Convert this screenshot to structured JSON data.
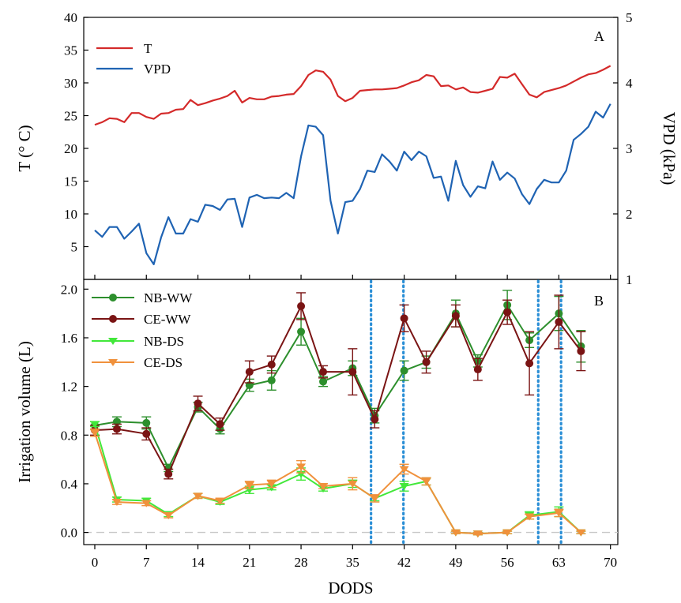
{
  "chart_data": [
    {
      "panel": "A",
      "type": "line",
      "title": "",
      "panel_label": "A",
      "xlabel": "",
      "ylabel": "T (° C)",
      "ylabel_right": "VPD (kPa)",
      "xlim": [
        -1.5,
        71
      ],
      "ylim": [
        0,
        40
      ],
      "ylim_right": [
        1,
        5
      ],
      "yticks": [
        5,
        10,
        15,
        20,
        25,
        30,
        35,
        40
      ],
      "yticks_right": [
        1,
        2,
        3,
        4,
        5
      ],
      "legend_position": "top-left",
      "colors": {
        "T": "#d42a2a",
        "VPD": "#1f63b3"
      },
      "series": [
        {
          "name": "T",
          "axis": "left",
          "x": [
            0,
            1,
            2,
            3,
            4,
            5,
            6,
            7,
            8,
            9,
            10,
            11,
            12,
            13,
            14,
            15,
            16,
            17,
            18,
            19,
            20,
            21,
            22,
            23,
            24,
            25,
            26,
            27,
            28,
            29,
            30,
            31,
            32,
            33,
            34,
            35,
            36,
            37,
            38,
            39,
            40,
            41,
            42,
            43,
            44,
            45,
            46,
            47,
            48,
            49,
            50,
            51,
            52,
            53,
            54,
            55,
            56,
            57,
            58,
            59,
            60,
            61,
            62,
            63,
            64,
            65,
            66,
            67,
            68,
            69,
            70
          ],
          "values": [
            23.6,
            24.0,
            24.6,
            24.5,
            24.0,
            25.4,
            25.4,
            24.8,
            24.5,
            25.3,
            25.4,
            25.9,
            26.0,
            27.4,
            26.6,
            26.9,
            27.3,
            27.6,
            28.0,
            28.8,
            27.0,
            27.7,
            27.5,
            27.5,
            27.9,
            28.0,
            28.2,
            28.3,
            29.5,
            31.2,
            31.9,
            31.7,
            30.5,
            28.0,
            27.2,
            27.7,
            28.8,
            28.9,
            29.0,
            29.0,
            29.1,
            29.2,
            29.6,
            30.1,
            30.4,
            31.2,
            31.0,
            29.5,
            29.6,
            29.0,
            29.3,
            28.6,
            28.5,
            28.8,
            29.1,
            30.9,
            30.8,
            31.4,
            29.8,
            28.2,
            27.8,
            28.6,
            28.9,
            29.2,
            29.6,
            30.2,
            30.8,
            31.3,
            31.5,
            32.0,
            32.6
          ]
        },
        {
          "name": "VPD",
          "axis": "right",
          "x": [
            0,
            1,
            2,
            3,
            4,
            5,
            6,
            7,
            8,
            9,
            10,
            11,
            12,
            13,
            14,
            15,
            16,
            17,
            18,
            19,
            20,
            21,
            22,
            23,
            24,
            25,
            26,
            27,
            28,
            29,
            30,
            31,
            32,
            33,
            34,
            35,
            36,
            37,
            38,
            39,
            40,
            41,
            42,
            43,
            44,
            45,
            46,
            47,
            48,
            49,
            50,
            51,
            52,
            53,
            54,
            55,
            56,
            57,
            58,
            59,
            60,
            61,
            62,
            63,
            64,
            65,
            66,
            67,
            68,
            69,
            70
          ],
          "values": [
            1.75,
            1.65,
            1.8,
            1.8,
            1.62,
            1.73,
            1.85,
            1.4,
            1.23,
            1.64,
            1.95,
            1.7,
            1.7,
            1.92,
            1.88,
            2.14,
            2.12,
            2.06,
            2.22,
            2.23,
            1.8,
            2.25,
            2.29,
            2.24,
            2.25,
            2.24,
            2.32,
            2.24,
            2.88,
            3.35,
            3.33,
            3.2,
            2.2,
            1.7,
            2.18,
            2.2,
            2.38,
            2.66,
            2.64,
            2.91,
            2.8,
            2.66,
            2.95,
            2.82,
            2.95,
            2.88,
            2.55,
            2.57,
            2.2,
            2.81,
            2.44,
            2.26,
            2.42,
            2.39,
            2.8,
            2.52,
            2.63,
            2.54,
            2.3,
            2.15,
            2.38,
            2.52,
            2.48,
            2.48,
            2.66,
            3.13,
            3.22,
            3.33,
            3.56,
            3.47,
            3.68
          ]
        }
      ]
    },
    {
      "panel": "B",
      "type": "line",
      "title": "",
      "panel_label": "B",
      "xlabel": "DODS",
      "ylabel": "Irrigation volume (L)",
      "xlim": [
        -1.5,
        71
      ],
      "ylim": [
        -0.1,
        2.08
      ],
      "xticks": [
        0,
        7,
        14,
        21,
        28,
        35,
        42,
        49,
        56,
        63,
        70
      ],
      "yticks": [
        0.0,
        0.4,
        0.8,
        1.2,
        1.6,
        2.0
      ],
      "ytick_labels": [
        "0.0",
        "0.4",
        "0.8",
        "1.2",
        "1.6",
        "2.0"
      ],
      "reference_line": 0.0,
      "vertical_markers": [
        37.5,
        41.9,
        60.2,
        63.3
      ],
      "legend_position": "top-left",
      "colors": {
        "NB-WW": "#2d8f2d",
        "CE-WW": "#7a1414",
        "NB-DS": "#42e83a",
        "CE-DS": "#f0913c",
        "markers": "#2b8fd6",
        "zero_line": "#c8c8c8"
      },
      "series": [
        {
          "name": "NB-WW",
          "marker": "circle",
          "x": [
            0,
            3,
            7,
            10,
            14,
            17,
            21,
            24,
            28,
            31,
            35,
            38,
            42,
            45,
            49,
            52,
            56,
            59,
            63,
            66
          ],
          "values": [
            0.88,
            0.91,
            0.9,
            0.53,
            1.03,
            0.85,
            1.21,
            1.25,
            1.65,
            1.24,
            1.35,
            0.96,
            1.33,
            1.4,
            1.8,
            1.41,
            1.87,
            1.58,
            1.8,
            1.53
          ],
          "errors": [
            0.03,
            0.04,
            0.05,
            0.03,
            0.04,
            0.04,
            0.05,
            0.08,
            0.11,
            0.04,
            0.06,
            0.06,
            0.08,
            0.05,
            0.11,
            0.05,
            0.12,
            0.06,
            0.14,
            0.13
          ]
        },
        {
          "name": "CE-WW",
          "marker": "circle",
          "x": [
            0,
            3,
            7,
            10,
            14,
            17,
            21,
            24,
            28,
            31,
            35,
            38,
            42,
            45,
            49,
            52,
            56,
            59,
            63,
            66
          ],
          "values": [
            0.84,
            0.85,
            0.81,
            0.48,
            1.06,
            0.89,
            1.32,
            1.38,
            1.86,
            1.32,
            1.32,
            0.93,
            1.76,
            1.4,
            1.78,
            1.34,
            1.81,
            1.39,
            1.73,
            1.49
          ],
          "errors": [
            0.04,
            0.04,
            0.05,
            0.04,
            0.06,
            0.05,
            0.09,
            0.07,
            0.11,
            0.05,
            0.19,
            0.07,
            0.11,
            0.09,
            0.09,
            0.09,
            0.1,
            0.26,
            0.22,
            0.16
          ]
        },
        {
          "name": "NB-DS",
          "marker": "triangle-down",
          "x": [
            0,
            3,
            7,
            10,
            14,
            17,
            21,
            24,
            28,
            31,
            35,
            38,
            42,
            45,
            49,
            52,
            56,
            59,
            63,
            66
          ],
          "values": [
            0.89,
            0.27,
            0.26,
            0.15,
            0.3,
            0.25,
            0.35,
            0.37,
            0.48,
            0.36,
            0.4,
            0.28,
            0.38,
            0.42,
            0.0,
            -0.01,
            0.0,
            0.14,
            0.17,
            0.0
          ],
          "errors": [
            0.02,
            0.02,
            0.02,
            0.02,
            0.02,
            0.02,
            0.03,
            0.02,
            0.05,
            0.02,
            0.03,
            0.02,
            0.04,
            0.03,
            0.01,
            0.01,
            0.01,
            0.03,
            0.04,
            0.01
          ]
        },
        {
          "name": "CE-DS",
          "marker": "triangle-down",
          "x": [
            0,
            3,
            7,
            10,
            14,
            17,
            21,
            24,
            28,
            31,
            35,
            38,
            42,
            45,
            49,
            52,
            56,
            59,
            63,
            66
          ],
          "values": [
            0.82,
            0.25,
            0.24,
            0.14,
            0.3,
            0.26,
            0.39,
            0.4,
            0.54,
            0.38,
            0.4,
            0.28,
            0.52,
            0.42,
            0.0,
            -0.01,
            0.0,
            0.13,
            0.16,
            0.0
          ],
          "errors": [
            0.03,
            0.02,
            0.02,
            0.02,
            0.02,
            0.02,
            0.03,
            0.03,
            0.05,
            0.02,
            0.05,
            0.03,
            0.04,
            0.03,
            0.01,
            0.01,
            0.01,
            0.02,
            0.03,
            0.01
          ]
        }
      ]
    }
  ]
}
